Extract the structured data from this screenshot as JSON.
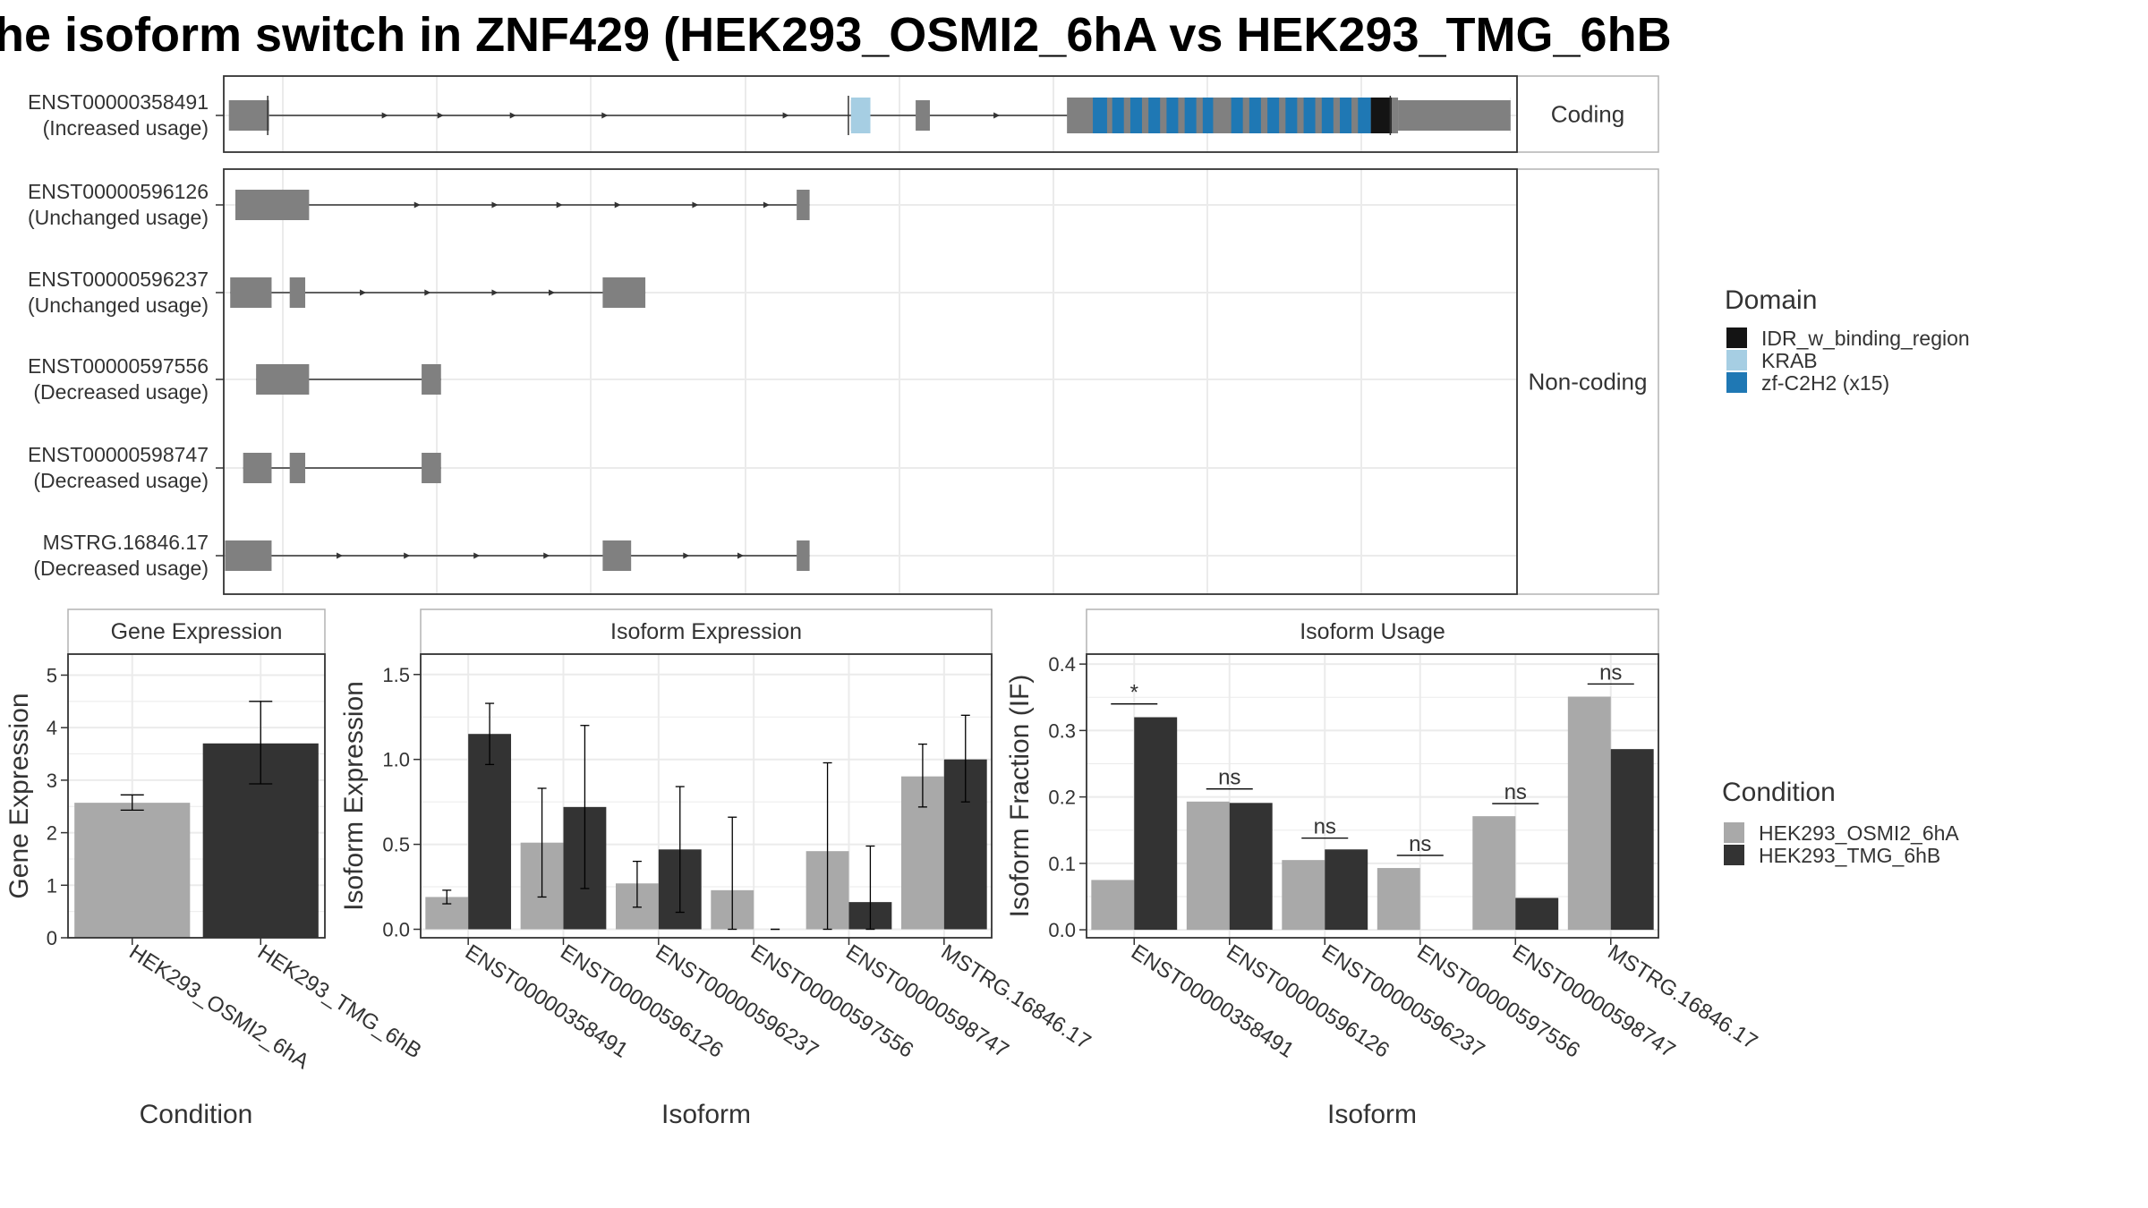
{
  "title": "he isoform switch in ZNF429 (HEK293_OSMI2_6hA vs HEK293_TMG_6hB",
  "colors": {
    "exon": "#808080",
    "line": "#333333",
    "grid": "#EBEBEB",
    "panel_border": "#333333",
    "strip_border": "#B3B3B3",
    "condA": "#A9A9A9",
    "condB": "#333333"
  },
  "transcript_panel": {
    "x_range": [
      0,
      1000
    ],
    "groups": [
      {
        "label": "Coding",
        "transcripts": [
          0
        ]
      },
      {
        "label": "Non-coding",
        "transcripts": [
          1,
          2,
          3,
          4,
          5
        ]
      }
    ],
    "transcripts": [
      {
        "id": "ENST00000358491",
        "usage": "(Increased usage)",
        "exons": [
          [
            4,
            35
          ],
          [
            485,
            500
          ],
          [
            535,
            546
          ],
          [
            652,
            995
          ]
        ],
        "big_exons": [
          [
            652,
            995
          ]
        ],
        "utr": [
          [
            4,
            35
          ],
          [
            908,
            995
          ]
        ],
        "arrows": [
          125,
          168,
          224,
          295,
          435,
          598
        ],
        "domains": [
          {
            "type": "KRAB",
            "start": 485,
            "end": 500
          },
          {
            "type": "zf-C2H2",
            "start": 672,
            "end": 683
          },
          {
            "type": "zf-C2H2",
            "start": 687,
            "end": 696
          },
          {
            "type": "zf-C2H2",
            "start": 701,
            "end": 710
          },
          {
            "type": "zf-C2H2",
            "start": 715,
            "end": 724
          },
          {
            "type": "zf-C2H2",
            "start": 729,
            "end": 738
          },
          {
            "type": "zf-C2H2",
            "start": 743,
            "end": 752
          },
          {
            "type": "zf-C2H2",
            "start": 757,
            "end": 765
          },
          {
            "type": "zf-C2H2",
            "start": 779,
            "end": 788
          },
          {
            "type": "zf-C2H2",
            "start": 793,
            "end": 802
          },
          {
            "type": "zf-C2H2",
            "start": 807,
            "end": 816
          },
          {
            "type": "zf-C2H2",
            "start": 821,
            "end": 830
          },
          {
            "type": "zf-C2H2",
            "start": 835,
            "end": 844
          },
          {
            "type": "zf-C2H2",
            "start": 849,
            "end": 858
          },
          {
            "type": "zf-C2H2",
            "start": 863,
            "end": 872
          },
          {
            "type": "zf-C2H2",
            "start": 877,
            "end": 887
          },
          {
            "type": "IDR_w_binding_region",
            "start": 887,
            "end": 903
          }
        ],
        "ticks": [
          34,
          483,
          902
        ]
      },
      {
        "id": "ENST00000596126",
        "usage": "(Unchanged usage)",
        "exons": [
          [
            9,
            66
          ],
          [
            443,
            453
          ]
        ],
        "big_exons": [],
        "utr": [],
        "arrows": [
          150,
          210,
          260,
          305,
          365,
          420
        ],
        "domains": [],
        "ticks": []
      },
      {
        "id": "ENST00000596237",
        "usage": "(Unchanged usage)",
        "exons": [
          [
            5,
            37
          ],
          [
            51,
            63
          ],
          [
            293,
            326
          ]
        ],
        "big_exons": [],
        "utr": [],
        "arrows": [
          108,
          158,
          210,
          254
        ],
        "domains": [],
        "ticks": []
      },
      {
        "id": "ENST00000597556",
        "usage": "(Decreased usage)",
        "exons": [
          [
            25,
            66
          ],
          [
            153,
            168
          ]
        ],
        "big_exons": [],
        "utr": [],
        "arrows": [],
        "domains": [],
        "ticks": []
      },
      {
        "id": "ENST00000598747",
        "usage": "(Decreased usage)",
        "exons": [
          [
            15,
            37
          ],
          [
            51,
            63
          ],
          [
            153,
            168
          ]
        ],
        "big_exons": [],
        "utr": [],
        "arrows": [],
        "domains": [],
        "ticks": []
      },
      {
        "id": "MSTRG.16846.17",
        "usage": "(Decreased usage)",
        "exons": [
          [
            1,
            37
          ],
          [
            293,
            315
          ],
          [
            443,
            453
          ]
        ],
        "big_exons": [],
        "utr": [],
        "arrows": [
          90,
          142,
          196,
          250,
          358,
          400
        ],
        "domains": [],
        "ticks": []
      }
    ],
    "domain_legend": {
      "title": "Domain",
      "items": [
        {
          "label": "IDR_w_binding_region",
          "color": "#141414"
        },
        {
          "label": "KRAB",
          "color": "#A6CEE3"
        },
        {
          "label": "zf-C2H2 (x15)",
          "color": "#1F78B4"
        }
      ]
    }
  },
  "chart_data": [
    {
      "type": "bar",
      "title": "Gene Expression",
      "xlabel": "Condition",
      "ylabel": "Gene Expression",
      "ylim": [
        0,
        5.4
      ],
      "yticks": [
        0,
        1,
        2,
        3,
        4,
        5
      ],
      "categories": [
        "HEK293_OSMI2_6hA",
        "HEK293_TMG_6hB"
      ],
      "values": [
        2.57,
        3.7
      ],
      "err_low": [
        2.43,
        2.93
      ],
      "err_high": [
        2.72,
        4.5
      ]
    },
    {
      "type": "bar",
      "title": "Isoform Expression",
      "xlabel": "Isoform",
      "ylabel": "Isoform Expression",
      "ylim": [
        -0.05,
        1.62
      ],
      "yticks": [
        0.0,
        0.5,
        1.0,
        1.5
      ],
      "ytick_labels": [
        "0.0",
        "0.5",
        "1.0",
        "1.5"
      ],
      "categories": [
        "ENST00000358491",
        "ENST00000596126",
        "ENST00000596237",
        "ENST00000597556",
        "ENST00000598747",
        "MSTRG.16846.17"
      ],
      "series": [
        {
          "name": "HEK293_OSMI2_6hA",
          "values": [
            0.19,
            0.51,
            0.27,
            0.23,
            0.46,
            0.9
          ],
          "err_low": [
            0.15,
            0.19,
            0.13,
            0.0,
            0.0,
            0.72
          ],
          "err_high": [
            0.23,
            0.83,
            0.4,
            0.66,
            0.98,
            1.09
          ]
        },
        {
          "name": "HEK293_TMG_6hB",
          "values": [
            1.15,
            0.72,
            0.47,
            0.0,
            0.16,
            1.0
          ],
          "err_low": [
            0.97,
            0.24,
            0.1,
            0.0,
            0.0,
            0.75
          ],
          "err_high": [
            1.33,
            1.2,
            0.84,
            0.0,
            0.49,
            1.26
          ]
        }
      ]
    },
    {
      "type": "bar",
      "title": "Isoform Usage",
      "xlabel": "Isoform",
      "ylabel": "Isoform Fraction (IF)",
      "ylim": [
        -0.012,
        0.415
      ],
      "yticks": [
        0.0,
        0.1,
        0.2,
        0.3,
        0.4
      ],
      "ytick_labels": [
        "0.0",
        "0.1",
        "0.2",
        "0.3",
        "0.4"
      ],
      "categories": [
        "ENST00000358491",
        "ENST00000596126",
        "ENST00000596237",
        "ENST00000597556",
        "ENST00000598747",
        "MSTRG.16846.17"
      ],
      "series": [
        {
          "name": "HEK293_OSMI2_6hA",
          "values": [
            0.075,
            0.193,
            0.105,
            0.093,
            0.171,
            0.351
          ]
        },
        {
          "name": "HEK293_TMG_6hB",
          "values": [
            0.32,
            0.191,
            0.121,
            0.0,
            0.048,
            0.272
          ]
        }
      ],
      "significance": [
        "*",
        "ns",
        "ns",
        "ns",
        "ns",
        "ns"
      ],
      "significance_y": [
        0.34,
        0.212,
        0.138,
        0.112,
        0.19,
        0.37
      ]
    }
  ],
  "condition_legend": {
    "title": "Condition",
    "items": [
      {
        "label": "HEK293_OSMI2_6hA",
        "color": "#A9A9A9"
      },
      {
        "label": "HEK293_TMG_6hB",
        "color": "#333333"
      }
    ]
  }
}
